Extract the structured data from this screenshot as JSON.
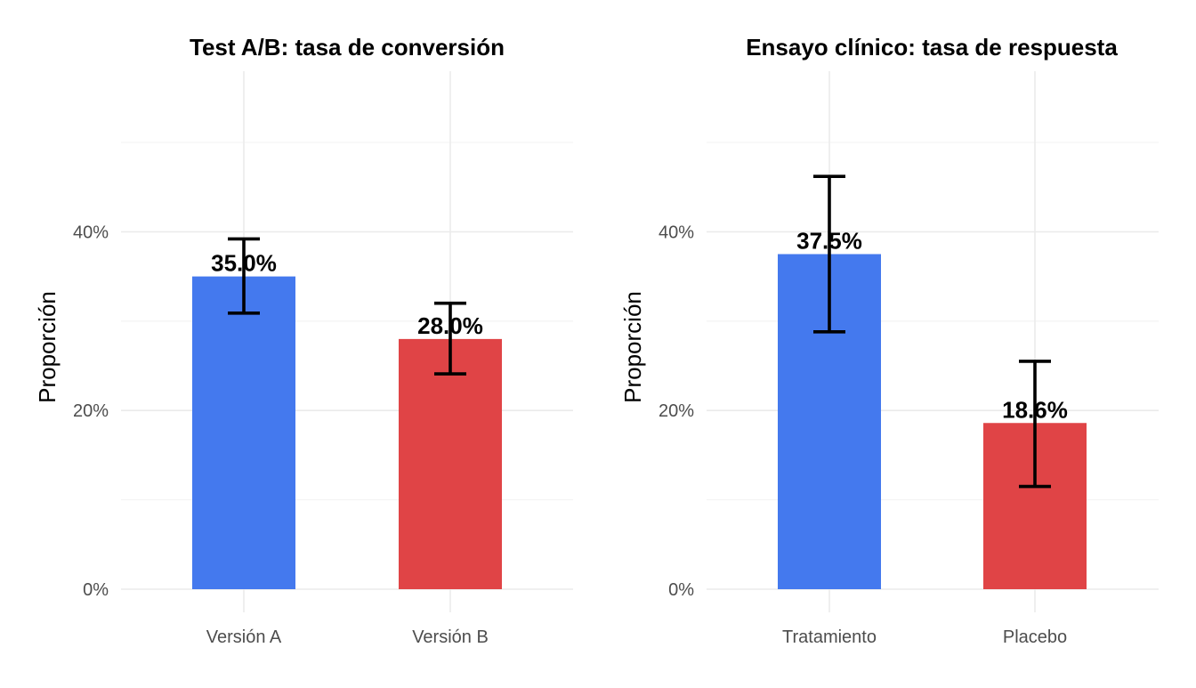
{
  "colors": {
    "bar_primary": "#4479ee",
    "bar_secondary": "#e04446"
  },
  "chart_data": [
    {
      "type": "bar",
      "title": "Test A/B: tasa de conversión",
      "xlabel": "",
      "ylabel": "Proporción",
      "categories": [
        "Versión A",
        "Versión B"
      ],
      "values": [
        0.35,
        0.28
      ],
      "value_labels": [
        "35.0%",
        "28.0%"
      ],
      "error_low": [
        0.309,
        0.241
      ],
      "error_high": [
        0.392,
        0.32
      ],
      "bar_colors": [
        "#4479ee",
        "#e04446"
      ],
      "ylim": [
        0,
        0.55
      ],
      "yticks": [
        0,
        0.2,
        0.4
      ],
      "ytick_labels": [
        "0%",
        "20%",
        "40%"
      ],
      "grid": true,
      "legend": "none"
    },
    {
      "type": "bar",
      "title": "Ensayo clínico: tasa de respuesta",
      "xlabel": "",
      "ylabel": "Proporción",
      "categories": [
        "Tratamiento",
        "Placebo"
      ],
      "values": [
        0.375,
        0.186
      ],
      "value_labels": [
        "37.5%",
        "18.6%"
      ],
      "error_low": [
        0.288,
        0.115
      ],
      "error_high": [
        0.462,
        0.255
      ],
      "bar_colors": [
        "#4479ee",
        "#e04446"
      ],
      "ylim": [
        0,
        0.55
      ],
      "yticks": [
        0,
        0.2,
        0.4
      ],
      "ytick_labels": [
        "0%",
        "20%",
        "40%"
      ],
      "grid": true,
      "legend": "none"
    }
  ]
}
